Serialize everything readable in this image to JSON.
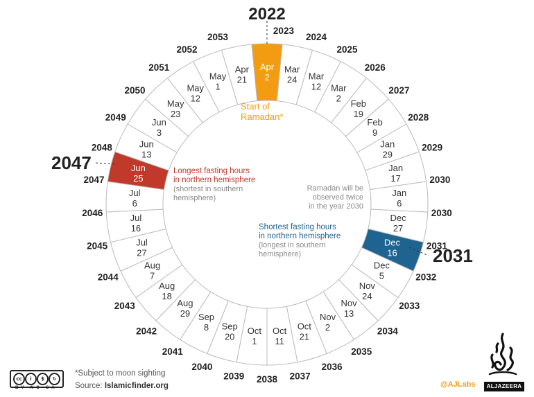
{
  "headline_year": "2022",
  "ring": [
    {
      "month": "Apr",
      "day": "2",
      "year": "2023"
    },
    {
      "month": "Mar",
      "day": "24",
      "year": "2024"
    },
    {
      "month": "Mar",
      "day": "12",
      "year": "2025"
    },
    {
      "month": "Mar",
      "day": "2",
      "year": "2026"
    },
    {
      "month": "Feb",
      "day": "19",
      "year": "2027"
    },
    {
      "month": "Feb",
      "day": "9",
      "year": "2028"
    },
    {
      "month": "Jan",
      "day": "29",
      "year": "2029"
    },
    {
      "month": "Jan",
      "day": "17",
      "year": "2030"
    },
    {
      "month": "Jan",
      "day": "6",
      "year": "2030"
    },
    {
      "month": "Dec",
      "day": "27",
      "year": "2031"
    },
    {
      "month": "Dec",
      "day": "16",
      "year": "2032"
    },
    {
      "month": "Dec",
      "day": "5",
      "year": "2033"
    },
    {
      "month": "Nov",
      "day": "24",
      "year": "2034"
    },
    {
      "month": "Nov",
      "day": "13",
      "year": "2035"
    },
    {
      "month": "Nov",
      "day": "2",
      "year": "2036"
    },
    {
      "month": "Oct",
      "day": "21",
      "year": "2037"
    },
    {
      "month": "Oct",
      "day": "11",
      "year": "2038"
    },
    {
      "month": "Oct",
      "day": "1",
      "year": "2039"
    },
    {
      "month": "Sep",
      "day": "20",
      "year": "2040"
    },
    {
      "month": "Sep",
      "day": "8",
      "year": "2041"
    },
    {
      "month": "Aug",
      "day": "29",
      "year": "2042"
    },
    {
      "month": "Aug",
      "day": "18",
      "year": "2043"
    },
    {
      "month": "Aug",
      "day": "7",
      "year": "2044"
    },
    {
      "month": "Jul",
      "day": "27",
      "year": "2045"
    },
    {
      "month": "Jul",
      "day": "16",
      "year": "2046"
    },
    {
      "month": "Jul",
      "day": "6",
      "year": "2047"
    },
    {
      "month": "Jun",
      "day": "25",
      "year": "2048"
    },
    {
      "month": "Jun",
      "day": "13",
      "year": "2049"
    },
    {
      "month": "Jun",
      "day": "3",
      "year": "2050"
    },
    {
      "month": "May",
      "day": "23",
      "year": "2051"
    },
    {
      "month": "May",
      "day": "12",
      "year": "2052"
    },
    {
      "month": "May",
      "day": "1",
      "year": "2053"
    },
    {
      "month": "Apr",
      "day": "21",
      "year": ""
    }
  ],
  "highlights": {
    "start": {
      "index": 0,
      "color": "#f39c12"
    },
    "longest": {
      "index": 26,
      "color": "#c0392b"
    },
    "shortest": {
      "index": 10,
      "color": "#1f6391"
    }
  },
  "callouts": {
    "year_2047": "2047",
    "year_2031": "2031"
  },
  "annotations": {
    "start_line1": "Start of",
    "start_line2": "Ramadan*",
    "longest_line1": "Longest fasting hours",
    "longest_line2": "in northern hemisphere",
    "longest_sub1": "(shortest in southern",
    "longest_sub2": "hemisphere)",
    "twice_line1": "Ramadan will be",
    "twice_line2": "observed twice",
    "twice_line3": "in the year 2030",
    "shortest_line1": "Shortest fasting hours",
    "shortest_line2": "in northern hemisphere",
    "shortest_sub1": "(longest in southern",
    "shortest_sub2": "hemisphere)"
  },
  "colors": {
    "start": "#f39c12",
    "longest": "#c0392b",
    "shortest": "#1f6391",
    "grey_text": "#8a8a8a",
    "ring_line": "#bbbbbb"
  },
  "footer": {
    "note": "*Subject to moon sighting",
    "source_prefix": "Source: ",
    "source_name": "Islamicfinder.org",
    "credit": "@AJLabs",
    "brand": "ALJAZEERA",
    "license": "BY NC SA"
  },
  "icons": [
    "creative-commons-icon",
    "aljazeera-logo-icon"
  ]
}
